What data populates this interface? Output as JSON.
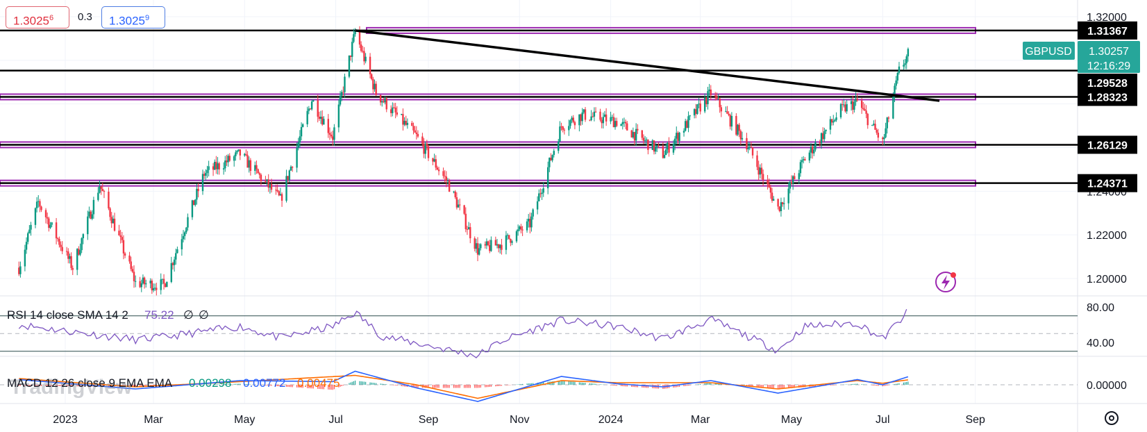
{
  "quote": {
    "bid_main": "1.3025",
    "bid_sup": "6",
    "spread": "0.3",
    "ask_main": "1.3025",
    "ask_sup": "9"
  },
  "symbol": {
    "name": "GBPUSD",
    "last": "1.30257",
    "countdown": "12:16:29"
  },
  "branding": {
    "logo_text": "TradingView"
  },
  "colors": {
    "up": "#089981",
    "down": "#f23645",
    "level": "#9c27b0",
    "rsi": "#7e57c2",
    "macd": "#2962ff",
    "signal": "#ff6d00",
    "badge": "#26a69a",
    "flash": "#9c27b0"
  },
  "chart_data": {
    "type": "candlestick",
    "symbol": "GBPUSD",
    "timeframe": "daily",
    "price_axis": {
      "ylim": [
        1.2,
        1.32
      ],
      "ticks": [
        "1.20000",
        "1.22000",
        "1.24000",
        "1.32000"
      ]
    },
    "time_axis": {
      "labels": [
        "2023",
        "Mar",
        "May",
        "Jul",
        "Sep",
        "Nov",
        "2024",
        "Mar",
        "May",
        "Jul",
        "Sep"
      ]
    },
    "price_path": [
      {
        "date": "2022-12-01",
        "price": 1.205
      },
      {
        "date": "2022-12-14",
        "price": 1.235
      },
      {
        "date": "2023-01-06",
        "price": 1.205
      },
      {
        "date": "2023-01-24",
        "price": 1.243
      },
      {
        "date": "2023-02-17",
        "price": 1.198
      },
      {
        "date": "2023-03-08",
        "price": 1.197
      },
      {
        "date": "2023-04-04",
        "price": 1.248
      },
      {
        "date": "2023-04-28",
        "price": 1.257
      },
      {
        "date": "2023-05-25",
        "price": 1.236
      },
      {
        "date": "2023-06-15",
        "price": 1.282
      },
      {
        "date": "2023-06-29",
        "price": 1.265
      },
      {
        "date": "2023-07-14",
        "price": 1.313
      },
      {
        "date": "2023-07-28",
        "price": 1.285
      },
      {
        "date": "2023-08-24",
        "price": 1.265
      },
      {
        "date": "2023-09-14",
        "price": 1.244
      },
      {
        "date": "2023-10-04",
        "price": 1.213
      },
      {
        "date": "2023-10-20",
        "price": 1.216
      },
      {
        "date": "2023-11-08",
        "price": 1.225
      },
      {
        "date": "2023-11-29",
        "price": 1.27
      },
      {
        "date": "2023-12-13",
        "price": 1.275
      },
      {
        "date": "2024-01-05",
        "price": 1.272
      },
      {
        "date": "2024-02-05",
        "price": 1.257
      },
      {
        "date": "2024-03-08",
        "price": 1.285
      },
      {
        "date": "2024-04-01",
        "price": 1.262
      },
      {
        "date": "2024-04-22",
        "price": 1.232
      },
      {
        "date": "2024-05-10",
        "price": 1.255
      },
      {
        "date": "2024-06-03",
        "price": 1.277
      },
      {
        "date": "2024-06-14",
        "price": 1.281
      },
      {
        "date": "2024-07-01",
        "price": 1.262
      },
      {
        "date": "2024-07-12",
        "price": 1.295
      },
      {
        "date": "2024-07-18",
        "price": 1.3025
      }
    ],
    "levels": [
      {
        "label": "1.31367",
        "value": 1.31367
      },
      {
        "label": "1.29528",
        "value": 1.29528
      },
      {
        "label": "1.28323",
        "value": 1.28323
      },
      {
        "label": "1.26129",
        "value": 1.26129
      },
      {
        "label": "1.24371",
        "value": 1.24371
      }
    ],
    "trendline": {
      "from": {
        "date": "2023-07-14",
        "price": 1.31367
      },
      "to": {
        "date": "2024-08-08",
        "price": 1.2815
      }
    },
    "rsi": {
      "title": "RSI 14 close SMA 14 2",
      "value": "75.22",
      "extra": [
        "∅",
        "∅"
      ],
      "ylim": [
        20,
        100
      ],
      "ticks": [
        "80.00",
        "40.00"
      ],
      "bands": [
        70,
        30
      ],
      "path": [
        {
          "date": "2022-12-01",
          "value": 60
        },
        {
          "date": "2023-01-06",
          "value": 52
        },
        {
          "date": "2023-02-17",
          "value": 43
        },
        {
          "date": "2023-03-08",
          "value": 46
        },
        {
          "date": "2023-04-28",
          "value": 58
        },
        {
          "date": "2023-05-25",
          "value": 45
        },
        {
          "date": "2023-06-29",
          "value": 58
        },
        {
          "date": "2023-07-14",
          "value": 74
        },
        {
          "date": "2023-08-01",
          "value": 47
        },
        {
          "date": "2023-10-04",
          "value": 25
        },
        {
          "date": "2023-10-20",
          "value": 42
        },
        {
          "date": "2023-11-29",
          "value": 65
        },
        {
          "date": "2024-01-05",
          "value": 58
        },
        {
          "date": "2024-02-05",
          "value": 44
        },
        {
          "date": "2024-03-08",
          "value": 66
        },
        {
          "date": "2024-04-22",
          "value": 31
        },
        {
          "date": "2024-05-10",
          "value": 58
        },
        {
          "date": "2024-06-14",
          "value": 62
        },
        {
          "date": "2024-07-01",
          "value": 44
        },
        {
          "date": "2024-07-18",
          "value": 75
        }
      ]
    },
    "macd": {
      "title": "MACD 12 26 close 9 EMA EMA",
      "values": [
        "0.00298",
        "0.00772",
        "0.00475"
      ],
      "ylim": [
        -0.02,
        0.02
      ],
      "ticks": [
        "0.00000"
      ],
      "macd_path": [
        {
          "date": "2022-12-01",
          "value": 0.005
        },
        {
          "date": "2023-02-17",
          "value": -0.004
        },
        {
          "date": "2023-04-28",
          "value": 0.004
        },
        {
          "date": "2023-06-29",
          "value": 0.003
        },
        {
          "date": "2023-07-14",
          "value": 0.013
        },
        {
          "date": "2023-08-24",
          "value": -0.003
        },
        {
          "date": "2023-10-04",
          "value": -0.016
        },
        {
          "date": "2023-11-29",
          "value": 0.008
        },
        {
          "date": "2024-01-05",
          "value": 0.001
        },
        {
          "date": "2024-02-05",
          "value": -0.002
        },
        {
          "date": "2024-03-08",
          "value": 0.004
        },
        {
          "date": "2024-04-22",
          "value": -0.008
        },
        {
          "date": "2024-06-14",
          "value": 0.005
        },
        {
          "date": "2024-07-01",
          "value": 0.0
        },
        {
          "date": "2024-07-18",
          "value": 0.0077
        }
      ],
      "signal_path": [
        {
          "date": "2022-12-01",
          "value": 0.006
        },
        {
          "date": "2023-02-17",
          "value": -0.002
        },
        {
          "date": "2023-04-28",
          "value": 0.003
        },
        {
          "date": "2023-07-14",
          "value": 0.009
        },
        {
          "date": "2023-08-24",
          "value": 0.0
        },
        {
          "date": "2023-10-04",
          "value": -0.013
        },
        {
          "date": "2023-11-29",
          "value": 0.004
        },
        {
          "date": "2024-01-05",
          "value": 0.002
        },
        {
          "date": "2024-03-08",
          "value": 0.002
        },
        {
          "date": "2024-04-22",
          "value": -0.004
        },
        {
          "date": "2024-06-14",
          "value": 0.004
        },
        {
          "date": "2024-07-01",
          "value": 0.0015
        },
        {
          "date": "2024-07-18",
          "value": 0.0047
        }
      ]
    }
  }
}
